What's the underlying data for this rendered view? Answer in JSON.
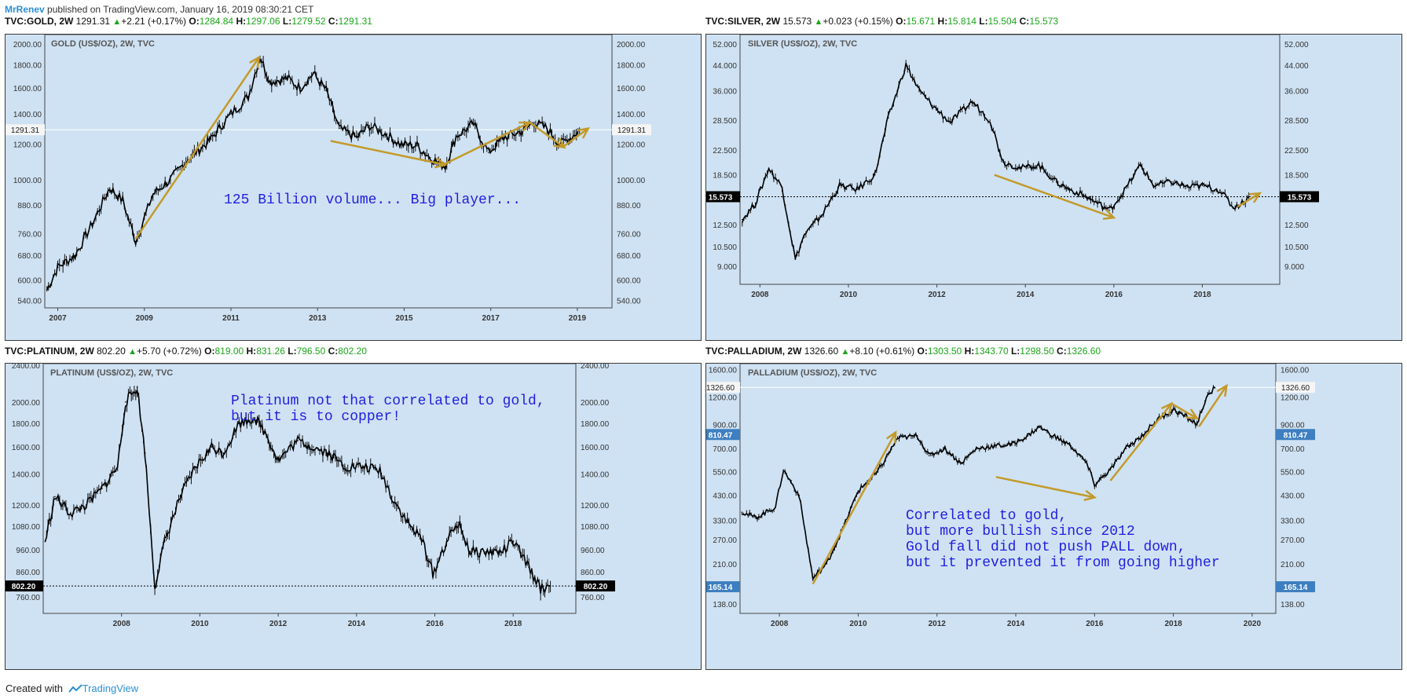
{
  "header": {
    "author": "MrRenev",
    "text": " published on TradingView.com, January 16, 2019 08:30:21 CET"
  },
  "footer": {
    "created": "Created with",
    "brand": "TradingView"
  },
  "colors": {
    "panel_bg": "#cfe2f3",
    "arrow": "#c39a2a",
    "annotation": "#1f1fe0",
    "up": "#1aa51a",
    "last_price_label": "#000000",
    "blue_label": "#3d7fc0"
  },
  "panels": [
    {
      "symbol": "TVC:GOLD, 2W",
      "last": "1291.31",
      "change": "+2.21 (+0.17%)",
      "o": "1284.84",
      "h": "1297.06",
      "l": "1279.52",
      "c": "1291.31",
      "title": "GOLD (US$/OZ), 2W, TVC",
      "annotation": [
        "125 Billion volume... Big player..."
      ],
      "price_label": "1291.31",
      "extra_labels": []
    },
    {
      "symbol": "TVC:SILVER, 2W",
      "last": "15.573",
      "change": "+0.023 (+0.15%)",
      "o": "15.671",
      "h": "15.814",
      "l": "15.504",
      "c": "15.573",
      "title": "SILVER (US$/OZ), 2W, TVC",
      "annotation": [],
      "price_label": "15.573",
      "extra_labels": []
    },
    {
      "symbol": "TVC:PLATINUM, 2W",
      "last": "802.20",
      "change": "+5.70 (+0.72%)",
      "o": "819.00",
      "h": "831.26",
      "l": "796.50",
      "c": "802.20",
      "title": "PLATINUM (US$/OZ), 2W, TVC",
      "annotation": [
        "Platinum not that correlated to gold,",
        "but it is to copper!"
      ],
      "price_label": "802.20",
      "extra_labels": []
    },
    {
      "symbol": "TVC:PALLADIUM, 2W",
      "last": "1326.60",
      "change": "+8.10 (+0.61%)",
      "o": "1303.50",
      "h": "1343.70",
      "l": "1298.50",
      "c": "1326.60",
      "title": "PALLADIUM (US$/OZ), 2W, TVC",
      "annotation": [
        "Correlated to gold,",
        "but more bullish since 2012",
        "Gold fall did not push PALL down,",
        "but it prevented it from going higher"
      ],
      "price_label": "1326.60",
      "extra_labels": [
        "810.47",
        "165.14"
      ]
    }
  ],
  "chart_data": [
    {
      "type": "line",
      "title": "GOLD (US$/OZ), 2W, TVC",
      "log_scale": true,
      "x_ticks": [
        "2007",
        "2009",
        "2011",
        "2013",
        "2015",
        "2017",
        "2019"
      ],
      "y_ticks": [
        "540.00",
        "600.00",
        "680.00",
        "760.00",
        "880.00",
        "1000.00",
        "1200.00",
        "1400.00",
        "1600.00",
        "1800.00",
        "2000.00"
      ],
      "ylim": [
        520,
        2100
      ],
      "xlim": [
        2006.7,
        2019.8
      ],
      "x": [
        2006.75,
        2007.0,
        2007.4,
        2007.8,
        2008.2,
        2008.5,
        2008.8,
        2009.2,
        2009.6,
        2010.0,
        2010.5,
        2011.0,
        2011.4,
        2011.67,
        2011.9,
        2012.3,
        2012.6,
        2012.9,
        2013.2,
        2013.5,
        2013.9,
        2014.2,
        2014.6,
        2014.9,
        2015.3,
        2015.6,
        2015.95,
        2016.2,
        2016.6,
        2016.95,
        2017.3,
        2017.7,
        2018.0,
        2018.3,
        2018.6,
        2018.8,
        2019.05
      ],
      "values": [
        570,
        640,
        680,
        800,
        960,
        900,
        730,
        930,
        1000,
        1110,
        1220,
        1400,
        1530,
        1880,
        1650,
        1680,
        1600,
        1720,
        1580,
        1300,
        1240,
        1320,
        1260,
        1200,
        1190,
        1120,
        1070,
        1250,
        1330,
        1150,
        1240,
        1280,
        1340,
        1300,
        1200,
        1230,
        1291
      ]
    },
    {
      "type": "line",
      "title": "SILVER (US$/OZ), 2W, TVC",
      "log_scale": true,
      "x_ticks": [
        "2008",
        "2010",
        "2012",
        "2014",
        "2016",
        "2018"
      ],
      "y_ticks": [
        "9.000",
        "10.500",
        "12.500",
        "15.573",
        "18.500",
        "22.500",
        "28.500",
        "36.000",
        "44.000",
        "52.000"
      ],
      "ylim": [
        7.8,
        56
      ],
      "xlim": [
        2007.55,
        2019.75
      ],
      "x": [
        2007.6,
        2007.9,
        2008.2,
        2008.5,
        2008.8,
        2009.0,
        2009.4,
        2009.8,
        2010.2,
        2010.6,
        2010.9,
        2011.3,
        2011.6,
        2011.9,
        2012.3,
        2012.8,
        2013.2,
        2013.5,
        2013.9,
        2014.3,
        2014.7,
        2015.0,
        2015.4,
        2015.9,
        2016.2,
        2016.6,
        2016.9,
        2017.3,
        2017.7,
        2018.0,
        2018.4,
        2018.7,
        2018.9,
        2019.05
      ],
      "values": [
        13.0,
        14.8,
        19.5,
        16.8,
        9.5,
        11.5,
        13.5,
        17.0,
        16.5,
        18.5,
        29.0,
        44.0,
        36.0,
        32.0,
        28.0,
        33.0,
        28.5,
        20.5,
        19.5,
        20.0,
        17.5,
        16.5,
        15.5,
        14.0,
        16.0,
        20.0,
        17.0,
        17.5,
        16.8,
        17.0,
        16.4,
        14.3,
        14.8,
        15.573
      ]
    },
    {
      "type": "line",
      "title": "PLATINUM (US$/OZ), 2W, TVC",
      "log_scale": true,
      "x_ticks": [
        "2008",
        "2010",
        "2012",
        "2014",
        "2016",
        "2018"
      ],
      "y_ticks": [
        "760.00",
        "860.00",
        "960.00",
        "1080.00",
        "1200.00",
        "1400.00",
        "1600.00",
        "1800.00",
        "2000.00",
        "2400.00"
      ],
      "ylim": [
        700,
        2420
      ],
      "xlim": [
        2006.0,
        2019.6
      ],
      "x": [
        2006.05,
        2006.3,
        2006.7,
        2007.1,
        2007.5,
        2007.9,
        2008.1,
        2008.4,
        2008.6,
        2008.85,
        2009.1,
        2009.5,
        2009.9,
        2010.3,
        2010.6,
        2011.0,
        2011.4,
        2011.7,
        2012.0,
        2012.5,
        2012.9,
        2013.3,
        2013.7,
        2014.2,
        2014.6,
        2014.9,
        2015.3,
        2015.7,
        2015.95,
        2016.3,
        2016.6,
        2016.9,
        2017.3,
        2017.7,
        2018.0,
        2018.4,
        2018.7,
        2018.95
      ],
      "values": [
        1000,
        1250,
        1150,
        1200,
        1300,
        1450,
        2000,
        2150,
        1550,
        800,
        1000,
        1250,
        1450,
        1600,
        1550,
        1800,
        1850,
        1700,
        1500,
        1650,
        1600,
        1550,
        1450,
        1450,
        1420,
        1250,
        1100,
        1000,
        850,
        1000,
        1100,
        950,
        950,
        950,
        1000,
        880,
        790,
        802
      ]
    },
    {
      "type": "line",
      "title": "PALLADIUM (US$/OZ), 2W, TVC",
      "log_scale": true,
      "x_ticks": [
        "2008",
        "2010",
        "2012",
        "2014",
        "2016",
        "2018",
        "2020"
      ],
      "y_ticks": [
        "138.00",
        "165.14",
        "210.00",
        "270.00",
        "330.00",
        "430.00",
        "550.00",
        "700.00",
        "810.47",
        "900.00",
        "1200.00",
        "1326.60",
        "1600.00"
      ],
      "ylim": [
        125,
        1700
      ],
      "xlim": [
        2007.0,
        2020.6
      ],
      "x": [
        2007.05,
        2007.4,
        2007.9,
        2008.1,
        2008.5,
        2008.85,
        2009.2,
        2009.6,
        2010.0,
        2010.5,
        2011.0,
        2011.5,
        2011.8,
        2012.2,
        2012.6,
        2013.0,
        2013.5,
        2013.9,
        2014.3,
        2014.6,
        2014.95,
        2015.4,
        2015.8,
        2016.0,
        2016.4,
        2016.8,
        2017.2,
        2017.6,
        2018.0,
        2018.3,
        2018.6,
        2018.8,
        2019.05
      ],
      "values": [
        360,
        340,
        380,
        560,
        430,
        180,
        210,
        300,
        450,
        550,
        780,
        800,
        650,
        700,
        600,
        700,
        720,
        730,
        800,
        880,
        800,
        720,
        600,
        480,
        560,
        700,
        800,
        950,
        1050,
        980,
        900,
        1150,
        1326.6
      ]
    }
  ]
}
